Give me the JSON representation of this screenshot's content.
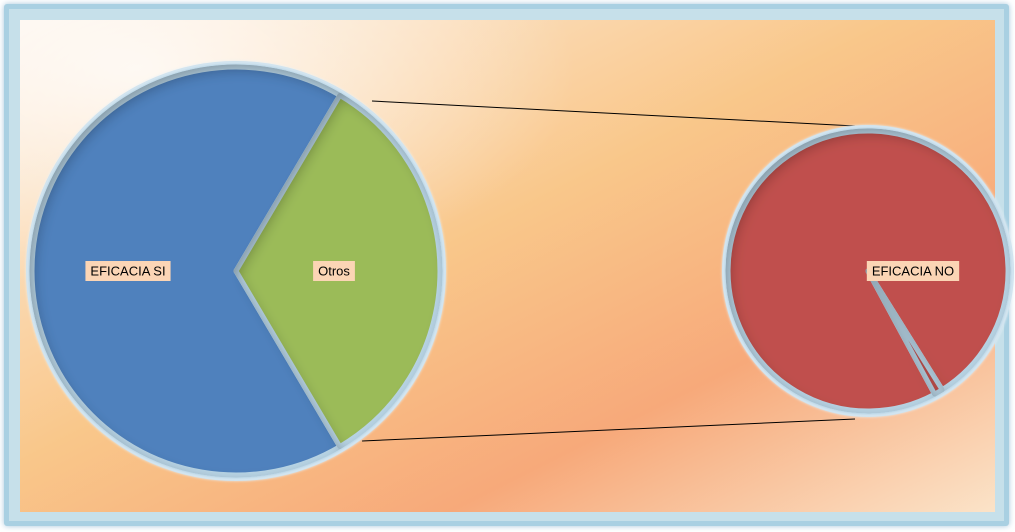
{
  "chart_data": {
    "type": "pie",
    "subtype": "pie-of-pie",
    "main_pie": {
      "slices": [
        {
          "label": "EFICACIA SI",
          "share": 0.67,
          "color": "#4f81bd"
        },
        {
          "label": "Otros",
          "share": 0.33,
          "color": "#9bbb59"
        }
      ]
    },
    "secondary_pie": {
      "slices": [
        {
          "label": "EFICACIA NO",
          "share": 0.99,
          "color": "#c0504d"
        },
        {
          "label": "",
          "share": 0.01,
          "color": "#c0504d"
        }
      ]
    },
    "connector_lines": true,
    "legend": "none",
    "label_style": {
      "background": "#fbd5b5",
      "text_color": "#000000"
    },
    "background": {
      "colors": [
        "#fdf1e6",
        "#f9c78a",
        "#f7a97a",
        "#fbe3c8"
      ],
      "border": "#a9d0e2"
    }
  }
}
